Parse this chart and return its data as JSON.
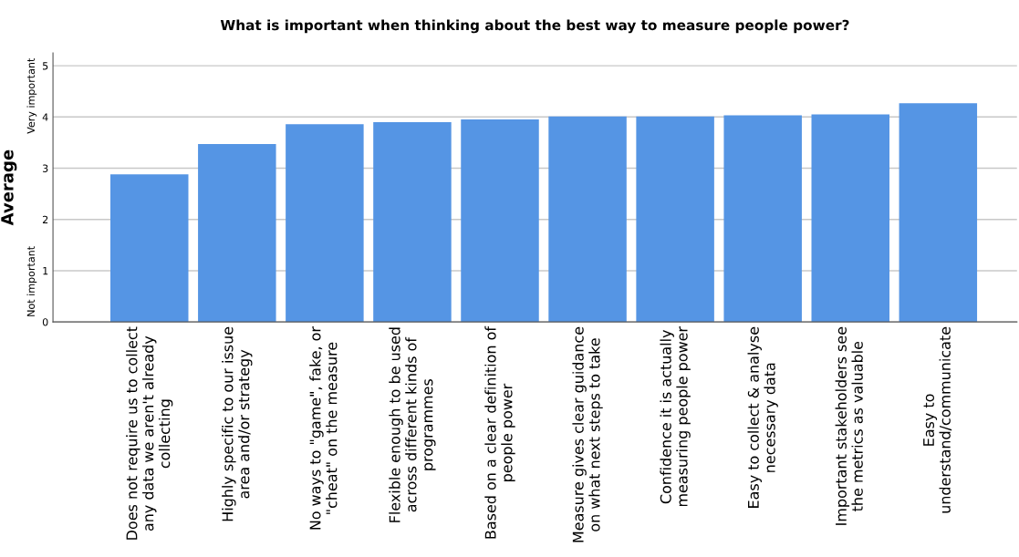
{
  "chart_data": {
    "type": "bar",
    "title": "What is important when thinking about the best way to measure people power?",
    "ylabel": "Average",
    "annotations": [
      "Very important",
      "Not important"
    ],
    "categories": [
      "Does not require us to collect\nany data we aren't already\ncollecting",
      "Highly specific to our issue\narea and/or strategy",
      "No ways to \"game\", fake, or\n\"cheat\" on the measure",
      "Flexible enough to be used\nacross different kinds of\nprogrammes",
      "Based on a clear definition of\npeople power",
      "Measure gives clear guidance\non what next steps to take",
      "Confidence it is actually\nmeasuring people power",
      "Easy to collect & analyse\nnecessary data",
      "Important stakeholders see\nthe metrics as valuable",
      "Easy to\nunderstand/communicate"
    ],
    "values": [
      2.88,
      3.47,
      3.86,
      3.9,
      3.95,
      4.01,
      4.01,
      4.03,
      4.05,
      4.27
    ],
    "color": "#5595e4",
    "ylim": [
      0,
      5.25
    ],
    "yticks": [
      0,
      1,
      2,
      3,
      4,
      5
    ],
    "grid": "y"
  }
}
